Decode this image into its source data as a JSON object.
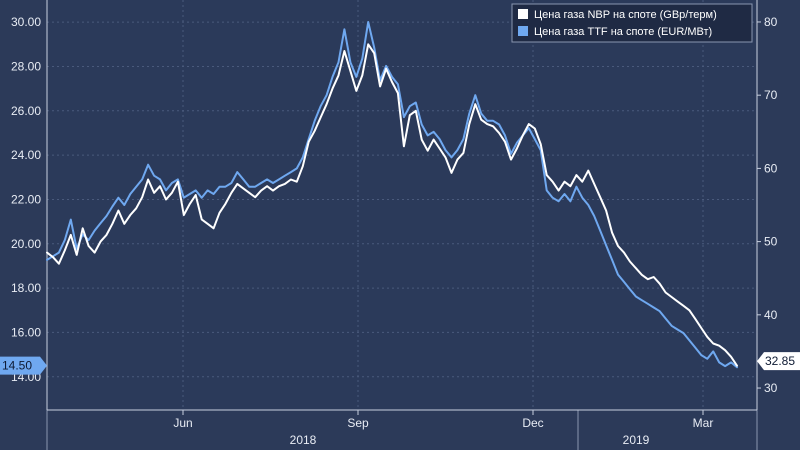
{
  "chart_data": {
    "type": "line",
    "legend": {
      "placement": "top-right"
    },
    "grid": true,
    "y_left": {
      "range": [
        12.5,
        31
      ],
      "ticks": [
        "14.00",
        "16.00",
        "18.00",
        "20.00",
        "22.00",
        "24.00",
        "26.00",
        "28.00",
        "30.00"
      ]
    },
    "y_right": {
      "range": [
        27,
        83
      ],
      "ticks": [
        "30",
        "40",
        "50",
        "60",
        "70",
        "80"
      ]
    },
    "x": {
      "month_labels": [
        "Jun",
        "Sep",
        "Dec",
        "Mar"
      ],
      "year_labels": [
        "2018",
        "2019"
      ]
    },
    "series": [
      {
        "name": "Цена газа NBP на споте (GBp/терм)",
        "axis": "left",
        "color": "#ffffff",
        "last_value_label": "14.50",
        "values": [
          19.6,
          19.4,
          19.1,
          19.7,
          20.4,
          19.5,
          20.7,
          19.9,
          19.6,
          20.1,
          20.4,
          20.9,
          21.5,
          20.9,
          21.3,
          21.6,
          22.1,
          22.9,
          22.3,
          22.6,
          22.0,
          22.3,
          22.8,
          21.3,
          21.8,
          22.2,
          21.1,
          20.9,
          20.7,
          21.4,
          21.8,
          22.3,
          22.7,
          22.5,
          22.3,
          22.1,
          22.4,
          22.6,
          22.4,
          22.6,
          22.7,
          22.9,
          22.8,
          23.5,
          24.6,
          25.1,
          25.7,
          26.3,
          27.0,
          27.6,
          28.7,
          27.8,
          26.9,
          27.6,
          29.0,
          28.6,
          27.1,
          27.9,
          27.3,
          26.8,
          24.4,
          25.8,
          26.0,
          24.7,
          24.2,
          24.7,
          24.3,
          23.9,
          23.2,
          23.8,
          24.1,
          25.4,
          26.3,
          25.6,
          25.4,
          25.3,
          25.0,
          24.6,
          23.8,
          24.3,
          24.9,
          25.4,
          25.2,
          24.5,
          23.1,
          22.8,
          22.4,
          22.8,
          22.6,
          23.1,
          22.8,
          23.3,
          22.7,
          22.1,
          21.5,
          20.5,
          19.9,
          19.6,
          19.2,
          18.9,
          18.6,
          18.4,
          18.5,
          18.2,
          17.8,
          17.6,
          17.4,
          17.2,
          17.0,
          16.6,
          16.2,
          15.8,
          15.5,
          15.4,
          15.2,
          14.9,
          14.5
        ]
      },
      {
        "name": "Цена газа TTF на споте (EUR/МВт)",
        "axis": "right",
        "color": "#6fa8f0",
        "last_value_label": "32.85",
        "values": [
          47.5,
          48.0,
          48.5,
          50.2,
          53.0,
          49.0,
          51.0,
          50.2,
          51.5,
          52.5,
          53.5,
          54.8,
          56.0,
          55.0,
          56.5,
          57.5,
          58.5,
          60.5,
          59.0,
          58.5,
          57.0,
          58.0,
          58.5,
          56.0,
          56.5,
          57.0,
          56.0,
          57.0,
          56.5,
          57.5,
          57.5,
          58.0,
          59.5,
          58.5,
          57.5,
          57.5,
          58.0,
          58.5,
          58.0,
          58.5,
          59.0,
          59.5,
          60.0,
          61.5,
          64.0,
          66.5,
          68.5,
          70.0,
          72.5,
          74.5,
          79.0,
          74.5,
          72.5,
          75.0,
          80.0,
          76.5,
          72.0,
          74.0,
          72.5,
          71.5,
          67.0,
          68.5,
          69.0,
          66.0,
          64.5,
          65.0,
          64.0,
          62.5,
          61.5,
          62.5,
          64.0,
          67.5,
          70.0,
          67.5,
          66.5,
          66.5,
          66.0,
          64.5,
          62.0,
          63.5,
          64.5,
          65.5,
          64.0,
          62.5,
          57.0,
          56.0,
          55.5,
          56.5,
          55.5,
          57.5,
          56.0,
          55.0,
          53.5,
          51.5,
          49.5,
          47.5,
          45.5,
          44.5,
          43.5,
          42.5,
          42.0,
          41.5,
          41.0,
          40.5,
          39.5,
          38.5,
          38.0,
          37.5,
          36.5,
          35.5,
          34.5,
          34.0,
          35.0,
          33.5,
          33.0,
          33.5,
          32.85
        ]
      }
    ]
  }
}
